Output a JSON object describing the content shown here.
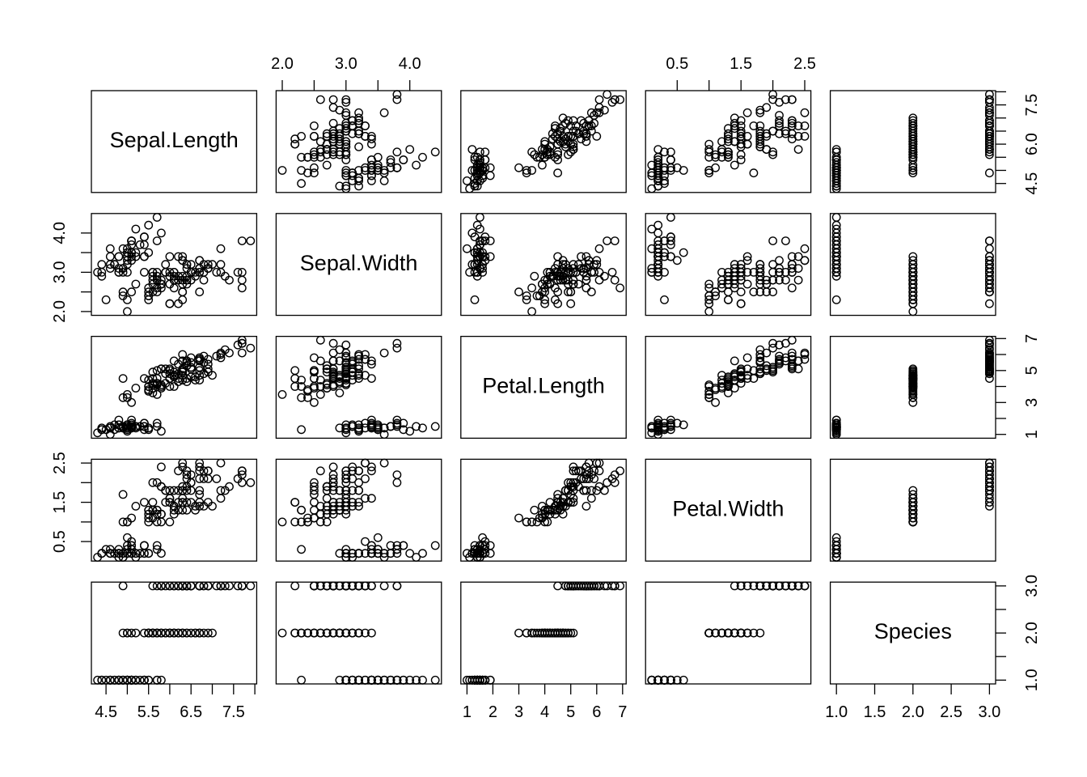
{
  "figure": {
    "background": "#ffffff",
    "stroke_color": "#000000",
    "point_style": "open-circle"
  },
  "chart_data": {
    "type": "scatter-matrix",
    "title": "",
    "grid": "off",
    "legend": "none",
    "diagonal_labels": [
      "Sepal.Length",
      "Sepal.Width",
      "Petal.Length",
      "Petal.Width",
      "Species"
    ],
    "axes_sides": {
      "bottom_cols": [
        0,
        2,
        4
      ],
      "top_cols": [
        1,
        3
      ],
      "left_rows": [
        1,
        3
      ],
      "right_rows": [
        0,
        2,
        4
      ]
    },
    "variables": [
      {
        "name": "Sepal.Length",
        "range": [
          4.156,
          8.044
        ],
        "ticks": [
          4.5,
          5,
          5.5,
          6,
          6.5,
          7,
          7.5,
          8
        ],
        "labels_h": [
          [
            "4.5",
            4.5
          ],
          [
            "5.5",
            5.5
          ],
          [
            "6.5",
            6.5
          ],
          [
            "7.5",
            7.5
          ]
        ],
        "labels_v": [
          [
            "4.5",
            4.5
          ],
          [
            "6.0",
            6
          ],
          [
            "7.5",
            7.5
          ]
        ]
      },
      {
        "name": "Sepal.Width",
        "range": [
          1.904,
          4.496
        ],
        "ticks": [
          2,
          2.5,
          3,
          3.5,
          4
        ],
        "labels_h": [
          [
            "2.0",
            2
          ],
          [
            "3.0",
            3
          ],
          [
            "4.0",
            4
          ]
        ],
        "labels_v": [
          [
            "2.0",
            2
          ],
          [
            "3.0",
            3
          ],
          [
            "4.0",
            4
          ]
        ]
      },
      {
        "name": "Petal.Length",
        "range": [
          0.764,
          7.136
        ],
        "ticks": [
          1,
          2,
          3,
          4,
          5,
          6,
          7
        ],
        "labels_h": [
          [
            "1",
            1
          ],
          [
            "2",
            2
          ],
          [
            "3",
            3
          ],
          [
            "4",
            4
          ],
          [
            "5",
            5
          ],
          [
            "6",
            6
          ],
          [
            "7",
            7
          ]
        ],
        "labels_v": [
          [
            "1",
            1
          ],
          [
            "3",
            3
          ],
          [
            "5",
            5
          ],
          [
            "7",
            7
          ]
        ]
      },
      {
        "name": "Petal.Width",
        "range": [
          0.004,
          2.596
        ],
        "ticks": [
          0.5,
          1,
          1.5,
          2,
          2.5
        ],
        "labels_h": [
          [
            "0.5",
            0.5
          ],
          [
            "1.5",
            1.5
          ],
          [
            "2.5",
            2.5
          ]
        ],
        "labels_v": [
          [
            "0.5",
            0.5
          ],
          [
            "1.5",
            1.5
          ],
          [
            "2.5",
            2.5
          ]
        ]
      },
      {
        "name": "Species",
        "range": [
          0.92,
          3.08
        ],
        "ticks": [
          1,
          1.5,
          2,
          2.5,
          3
        ],
        "labels_h": [
          [
            "1.0",
            1
          ],
          [
            "1.5",
            1.5
          ],
          [
            "2.0",
            2
          ],
          [
            "2.5",
            2.5
          ],
          [
            "3.0",
            3
          ]
        ],
        "labels_v": [
          [
            "1.0",
            1
          ],
          [
            "2.0",
            2
          ],
          [
            "3.0",
            3
          ]
        ]
      }
    ],
    "points": [
      [
        5.1,
        3.5,
        1.4,
        0.2,
        1
      ],
      [
        4.9,
        3.0,
        1.4,
        0.2,
        1
      ],
      [
        4.7,
        3.2,
        1.3,
        0.2,
        1
      ],
      [
        4.6,
        3.1,
        1.5,
        0.2,
        1
      ],
      [
        5.0,
        3.6,
        1.4,
        0.2,
        1
      ],
      [
        5.4,
        3.9,
        1.7,
        0.4,
        1
      ],
      [
        4.6,
        3.4,
        1.4,
        0.3,
        1
      ],
      [
        5.0,
        3.4,
        1.5,
        0.2,
        1
      ],
      [
        4.4,
        2.9,
        1.4,
        0.2,
        1
      ],
      [
        4.9,
        3.1,
        1.5,
        0.1,
        1
      ],
      [
        5.4,
        3.7,
        1.5,
        0.2,
        1
      ],
      [
        4.8,
        3.4,
        1.6,
        0.2,
        1
      ],
      [
        4.8,
        3.0,
        1.4,
        0.1,
        1
      ],
      [
        4.3,
        3.0,
        1.1,
        0.1,
        1
      ],
      [
        5.8,
        4.0,
        1.2,
        0.2,
        1
      ],
      [
        5.7,
        4.4,
        1.5,
        0.4,
        1
      ],
      [
        5.4,
        3.9,
        1.3,
        0.4,
        1
      ],
      [
        5.1,
        3.5,
        1.4,
        0.3,
        1
      ],
      [
        5.7,
        3.8,
        1.7,
        0.3,
        1
      ],
      [
        5.1,
        3.8,
        1.5,
        0.3,
        1
      ],
      [
        5.4,
        3.4,
        1.7,
        0.2,
        1
      ],
      [
        5.1,
        3.7,
        1.5,
        0.4,
        1
      ],
      [
        4.6,
        3.6,
        1.0,
        0.2,
        1
      ],
      [
        5.1,
        3.3,
        1.7,
        0.5,
        1
      ],
      [
        4.8,
        3.4,
        1.9,
        0.2,
        1
      ],
      [
        5.0,
        3.0,
        1.6,
        0.2,
        1
      ],
      [
        5.0,
        3.4,
        1.6,
        0.4,
        1
      ],
      [
        5.2,
        3.5,
        1.5,
        0.2,
        1
      ],
      [
        5.2,
        3.4,
        1.4,
        0.2,
        1
      ],
      [
        4.7,
        3.2,
        1.6,
        0.2,
        1
      ],
      [
        4.8,
        3.1,
        1.6,
        0.2,
        1
      ],
      [
        5.4,
        3.4,
        1.5,
        0.4,
        1
      ],
      [
        5.2,
        4.1,
        1.5,
        0.1,
        1
      ],
      [
        5.5,
        4.2,
        1.4,
        0.2,
        1
      ],
      [
        4.9,
        3.1,
        1.5,
        0.2,
        1
      ],
      [
        5.0,
        3.2,
        1.2,
        0.2,
        1
      ],
      [
        5.5,
        3.5,
        1.3,
        0.2,
        1
      ],
      [
        4.9,
        3.6,
        1.4,
        0.1,
        1
      ],
      [
        4.4,
        3.0,
        1.3,
        0.2,
        1
      ],
      [
        5.1,
        3.4,
        1.5,
        0.2,
        1
      ],
      [
        5.0,
        3.5,
        1.3,
        0.3,
        1
      ],
      [
        4.5,
        2.3,
        1.3,
        0.3,
        1
      ],
      [
        4.4,
        3.2,
        1.3,
        0.2,
        1
      ],
      [
        5.0,
        3.5,
        1.6,
        0.6,
        1
      ],
      [
        5.1,
        3.8,
        1.9,
        0.4,
        1
      ],
      [
        4.8,
        3.0,
        1.4,
        0.3,
        1
      ],
      [
        5.1,
        3.8,
        1.6,
        0.2,
        1
      ],
      [
        4.6,
        3.2,
        1.4,
        0.2,
        1
      ],
      [
        5.3,
        3.7,
        1.5,
        0.2,
        1
      ],
      [
        5.0,
        3.3,
        1.4,
        0.2,
        1
      ],
      [
        7.0,
        3.2,
        4.7,
        1.4,
        2
      ],
      [
        6.4,
        3.2,
        4.5,
        1.5,
        2
      ],
      [
        6.9,
        3.1,
        4.9,
        1.5,
        2
      ],
      [
        5.5,
        2.3,
        4.0,
        1.3,
        2
      ],
      [
        6.5,
        2.8,
        4.6,
        1.5,
        2
      ],
      [
        5.7,
        2.8,
        4.5,
        1.3,
        2
      ],
      [
        6.3,
        3.3,
        4.7,
        1.6,
        2
      ],
      [
        4.9,
        2.4,
        3.3,
        1.0,
        2
      ],
      [
        6.6,
        2.9,
        4.6,
        1.3,
        2
      ],
      [
        5.2,
        2.7,
        3.9,
        1.4,
        2
      ],
      [
        5.0,
        2.0,
        3.5,
        1.0,
        2
      ],
      [
        5.9,
        3.0,
        4.2,
        1.5,
        2
      ],
      [
        6.0,
        2.2,
        4.0,
        1.0,
        2
      ],
      [
        6.1,
        2.9,
        4.7,
        1.4,
        2
      ],
      [
        5.6,
        2.9,
        3.6,
        1.3,
        2
      ],
      [
        6.7,
        3.1,
        4.4,
        1.4,
        2
      ],
      [
        5.6,
        3.0,
        4.5,
        1.5,
        2
      ],
      [
        5.8,
        2.7,
        4.1,
        1.0,
        2
      ],
      [
        6.2,
        2.2,
        4.5,
        1.5,
        2
      ],
      [
        5.6,
        2.5,
        3.9,
        1.1,
        2
      ],
      [
        5.9,
        3.2,
        4.8,
        1.8,
        2
      ],
      [
        6.1,
        2.8,
        4.0,
        1.3,
        2
      ],
      [
        6.3,
        2.5,
        4.9,
        1.5,
        2
      ],
      [
        6.1,
        2.8,
        4.7,
        1.2,
        2
      ],
      [
        6.4,
        2.9,
        4.3,
        1.3,
        2
      ],
      [
        6.6,
        3.0,
        4.4,
        1.4,
        2
      ],
      [
        6.8,
        2.8,
        4.8,
        1.4,
        2
      ],
      [
        6.7,
        3.0,
        5.0,
        1.7,
        2
      ],
      [
        6.0,
        2.9,
        4.5,
        1.5,
        2
      ],
      [
        5.7,
        2.6,
        3.5,
        1.0,
        2
      ],
      [
        5.5,
        2.4,
        3.8,
        1.1,
        2
      ],
      [
        5.5,
        2.4,
        3.7,
        1.0,
        2
      ],
      [
        5.8,
        2.7,
        3.9,
        1.2,
        2
      ],
      [
        6.0,
        2.7,
        5.1,
        1.6,
        2
      ],
      [
        5.4,
        3.0,
        4.5,
        1.5,
        2
      ],
      [
        6.0,
        3.4,
        4.5,
        1.6,
        2
      ],
      [
        6.7,
        3.1,
        4.7,
        1.5,
        2
      ],
      [
        6.3,
        2.3,
        4.4,
        1.3,
        2
      ],
      [
        5.6,
        3.0,
        4.1,
        1.3,
        2
      ],
      [
        5.5,
        2.5,
        4.0,
        1.3,
        2
      ],
      [
        5.5,
        2.6,
        4.4,
        1.2,
        2
      ],
      [
        6.1,
        3.0,
        4.6,
        1.4,
        2
      ],
      [
        5.8,
        2.6,
        4.0,
        1.2,
        2
      ],
      [
        5.0,
        2.3,
        3.3,
        1.0,
        2
      ],
      [
        5.6,
        2.7,
        4.2,
        1.3,
        2
      ],
      [
        5.7,
        3.0,
        4.2,
        1.2,
        2
      ],
      [
        5.7,
        2.9,
        4.2,
        1.3,
        2
      ],
      [
        6.2,
        2.9,
        4.3,
        1.3,
        2
      ],
      [
        5.1,
        2.5,
        3.0,
        1.1,
        2
      ],
      [
        5.7,
        2.8,
        4.1,
        1.3,
        2
      ],
      [
        6.3,
        3.3,
        6.0,
        2.5,
        3
      ],
      [
        5.8,
        2.7,
        5.1,
        1.9,
        3
      ],
      [
        7.1,
        3.0,
        5.9,
        2.1,
        3
      ],
      [
        6.3,
        2.9,
        5.6,
        1.8,
        3
      ],
      [
        6.5,
        3.0,
        5.8,
        2.2,
        3
      ],
      [
        7.6,
        3.0,
        6.6,
        2.1,
        3
      ],
      [
        4.9,
        2.5,
        4.5,
        1.7,
        3
      ],
      [
        7.3,
        2.9,
        6.3,
        1.8,
        3
      ],
      [
        6.7,
        2.5,
        5.8,
        1.8,
        3
      ],
      [
        7.2,
        3.6,
        6.1,
        2.5,
        3
      ],
      [
        6.5,
        3.2,
        5.1,
        2.0,
        3
      ],
      [
        6.4,
        2.7,
        5.3,
        1.9,
        3
      ],
      [
        6.8,
        3.0,
        5.5,
        2.1,
        3
      ],
      [
        5.7,
        2.5,
        5.0,
        2.0,
        3
      ],
      [
        5.8,
        2.8,
        5.1,
        2.4,
        3
      ],
      [
        6.4,
        3.2,
        5.3,
        2.3,
        3
      ],
      [
        6.5,
        3.0,
        5.5,
        1.8,
        3
      ],
      [
        7.7,
        3.8,
        6.7,
        2.2,
        3
      ],
      [
        7.7,
        2.6,
        6.9,
        2.3,
        3
      ],
      [
        6.0,
        2.2,
        5.0,
        1.5,
        3
      ],
      [
        6.9,
        3.2,
        5.7,
        2.3,
        3
      ],
      [
        5.6,
        2.8,
        4.9,
        2.0,
        3
      ],
      [
        7.7,
        2.8,
        6.7,
        2.0,
        3
      ],
      [
        6.3,
        2.7,
        4.9,
        1.8,
        3
      ],
      [
        6.7,
        3.3,
        5.7,
        2.1,
        3
      ],
      [
        7.2,
        3.2,
        6.0,
        1.8,
        3
      ],
      [
        6.2,
        2.8,
        4.8,
        1.8,
        3
      ],
      [
        6.1,
        3.0,
        4.9,
        1.8,
        3
      ],
      [
        6.4,
        2.8,
        5.6,
        2.1,
        3
      ],
      [
        7.2,
        3.0,
        5.8,
        1.6,
        3
      ],
      [
        7.4,
        2.8,
        6.1,
        1.9,
        3
      ],
      [
        7.9,
        3.8,
        6.4,
        2.0,
        3
      ],
      [
        6.4,
        2.8,
        5.6,
        2.2,
        3
      ],
      [
        6.3,
        2.8,
        5.1,
        1.5,
        3
      ],
      [
        6.1,
        2.6,
        5.6,
        1.4,
        3
      ],
      [
        7.7,
        3.0,
        6.1,
        2.3,
        3
      ],
      [
        6.3,
        3.4,
        5.6,
        2.4,
        3
      ],
      [
        6.4,
        3.1,
        5.5,
        1.8,
        3
      ],
      [
        6.0,
        3.0,
        4.8,
        1.8,
        3
      ],
      [
        6.9,
        3.1,
        5.4,
        2.1,
        3
      ],
      [
        6.7,
        3.1,
        5.6,
        2.4,
        3
      ],
      [
        6.9,
        3.1,
        5.1,
        2.3,
        3
      ],
      [
        5.8,
        2.7,
        5.1,
        1.9,
        3
      ],
      [
        6.8,
        3.2,
        5.9,
        2.3,
        3
      ],
      [
        6.7,
        3.3,
        5.7,
        2.5,
        3
      ],
      [
        6.7,
        3.0,
        5.2,
        2.3,
        3
      ],
      [
        6.3,
        2.5,
        5.0,
        1.9,
        3
      ],
      [
        6.5,
        3.0,
        5.2,
        2.0,
        3
      ],
      [
        6.2,
        3.4,
        5.4,
        2.3,
        3
      ],
      [
        5.9,
        3.0,
        5.1,
        1.8,
        3
      ]
    ]
  }
}
